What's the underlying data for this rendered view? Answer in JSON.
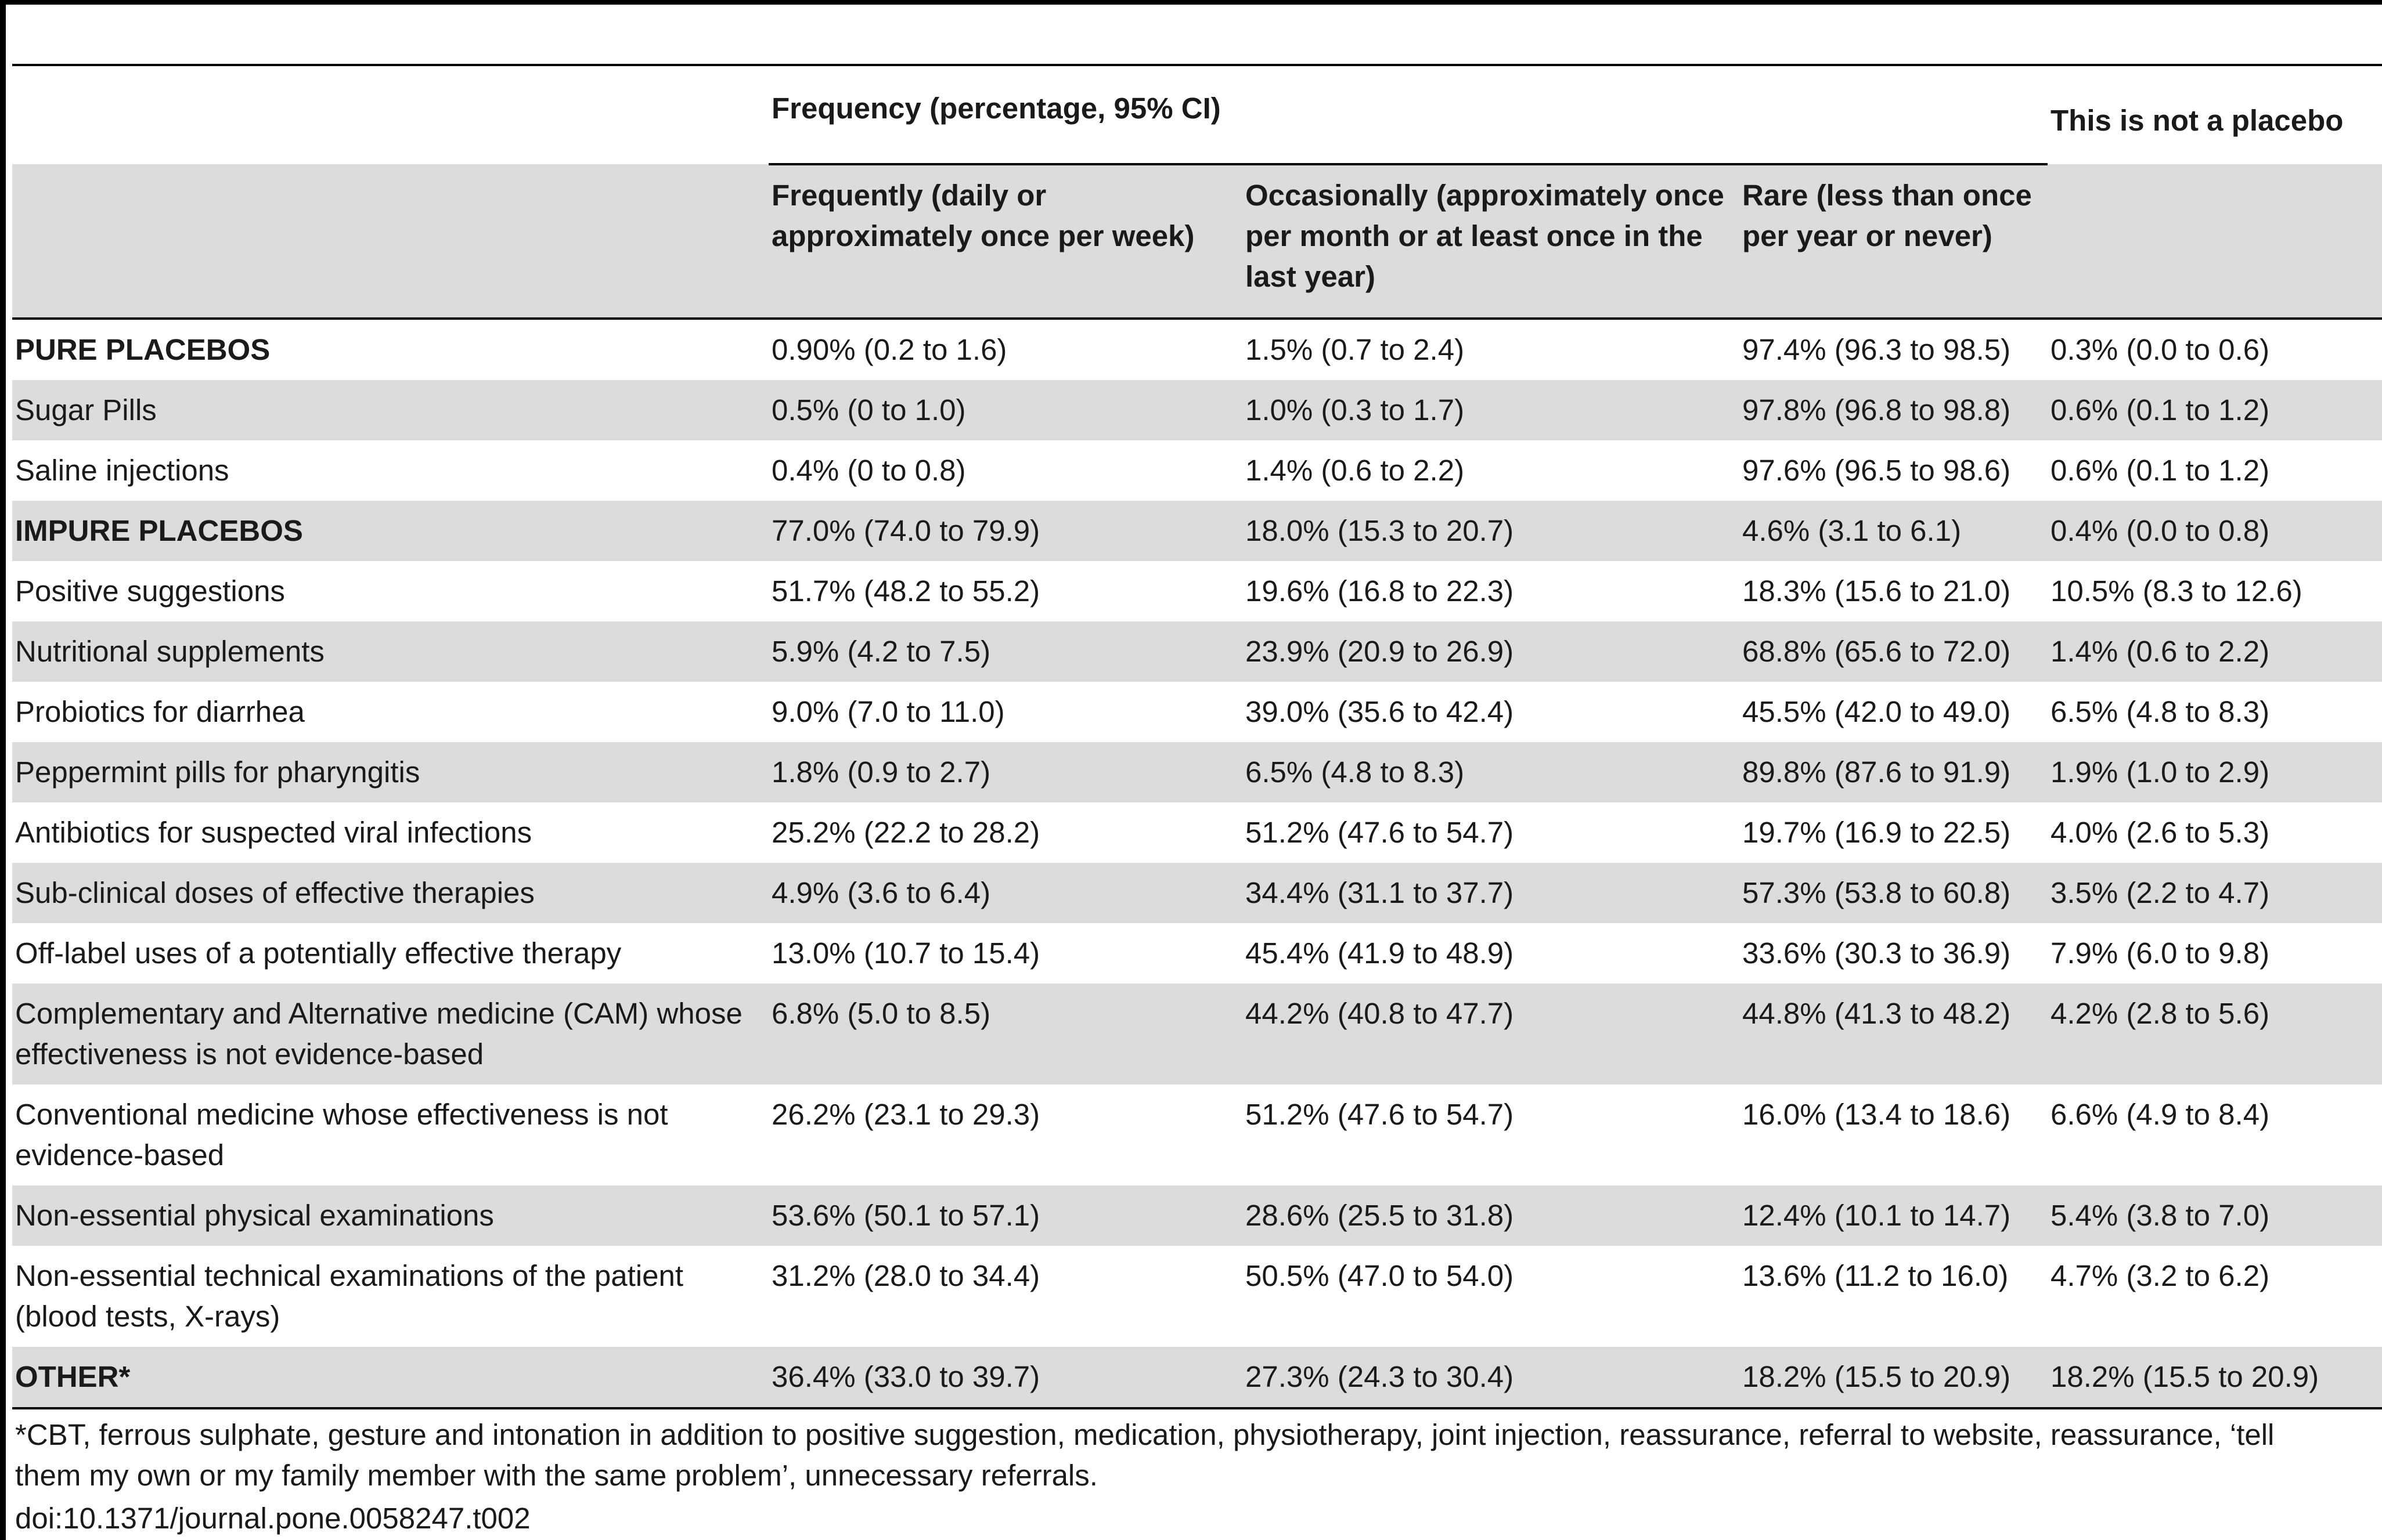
{
  "table": {
    "group_header": "Frequency (percentage, 95% CI)",
    "extra_header": "This is not a placebo",
    "columns": [
      "Frequently (daily or approximately once per week)",
      "Occasionally (approximately once per month or at least once in the last year)",
      "Rare (less than once per year or never)"
    ],
    "rows": [
      [
        "PURE PLACEBOS",
        "0.90% (0.2 to 1.6)",
        "1.5% (0.7 to 2.4)",
        "97.4% (96.3 to 98.5)",
        "0.3% (0.0 to 0.6)"
      ],
      [
        "Sugar Pills",
        "0.5% (0 to 1.0)",
        "1.0% (0.3 to 1.7)",
        "97.8% (96.8 to 98.8)",
        "0.6% (0.1 to 1.2)"
      ],
      [
        "Saline injections",
        "0.4% (0 to 0.8)",
        "1.4% (0.6 to 2.2)",
        "97.6% (96.5 to 98.6)",
        "0.6% (0.1 to 1.2)"
      ],
      [
        "IMPURE PLACEBOS",
        "77.0% (74.0 to 79.9)",
        "18.0% (15.3 to 20.7)",
        "4.6% (3.1 to 6.1)",
        "0.4% (0.0 to 0.8)"
      ],
      [
        "Positive suggestions",
        "51.7% (48.2 to 55.2)",
        "19.6% (16.8 to 22.3)",
        "18.3% (15.6 to 21.0)",
        "10.5% (8.3 to 12.6)"
      ],
      [
        "Nutritional supplements",
        "5.9% (4.2 to 7.5)",
        "23.9% (20.9 to 26.9)",
        "68.8% (65.6 to 72.0)",
        "1.4% (0.6 to 2.2)"
      ],
      [
        "Probiotics for diarrhea",
        "9.0% (7.0 to 11.0)",
        "39.0% (35.6 to 42.4)",
        "45.5% (42.0 to 49.0)",
        "6.5% (4.8 to 8.3)"
      ],
      [
        "Peppermint pills for pharyngitis",
        "1.8% (0.9 to 2.7)",
        "6.5% (4.8 to 8.3)",
        "89.8% (87.6 to 91.9)",
        "1.9% (1.0 to 2.9)"
      ],
      [
        "Antibiotics for suspected viral infections",
        "25.2% (22.2 to 28.2)",
        "51.2% (47.6 to 54.7)",
        "19.7% (16.9 to 22.5)",
        "4.0% (2.6 to 5.3)"
      ],
      [
        "Sub-clinical doses of effective therapies",
        "4.9% (3.6 to 6.4)",
        "34.4% (31.1 to 37.7)",
        "57.3% (53.8 to 60.8)",
        "3.5% (2.2 to 4.7)"
      ],
      [
        "Off-label uses of a potentially effective therapy",
        "13.0% (10.7 to 15.4)",
        "45.4% (41.9 to 48.9)",
        "33.6% (30.3 to 36.9)",
        "7.9% (6.0 to 9.8)"
      ],
      [
        "Complementary and Alternative medicine (CAM) whose effectiveness is not evidence-based",
        "6.8% (5.0 to 8.5)",
        "44.2% (40.8 to 47.7)",
        "44.8% (41.3 to 48.2)",
        "4.2% (2.8 to 5.6)"
      ],
      [
        "Conventional medicine whose effectiveness is not evidence-based",
        "26.2% (23.1 to 29.3)",
        "51.2% (47.6 to 54.7)",
        "16.0% (13.4 to 18.6)",
        "6.6% (4.9 to 8.4)"
      ],
      [
        "Non-essential physical examinations",
        "53.6% (50.1 to 57.1)",
        "28.6% (25.5 to 31.8)",
        "12.4% (10.1 to 14.7)",
        "5.4% (3.8 to 7.0)"
      ],
      [
        "Non-essential technical examinations of the patient (blood tests, X-rays)",
        "31.2% (28.0 to 34.4)",
        "50.5% (47.0 to 54.0)",
        "13.6% (11.2 to 16.0)",
        "4.7% (3.2 to 6.2)"
      ],
      [
        "OTHER*",
        "36.4% (33.0 to 39.7)",
        "27.3% (24.3 to 30.4)",
        "18.2% (15.5 to 20.9)",
        "18.2% (15.5 to 20.9)"
      ]
    ]
  },
  "footnote": "*CBT, ferrous sulphate, gesture and intonation in addition to positive suggestion, medication, physiotherapy, joint injection, reassurance, referral to website, reassurance, ‘tell them my own or my family member with the same problem’, unnecessary referrals.",
  "doi": "doi:10.1371/journal.pone.0058247.t002"
}
